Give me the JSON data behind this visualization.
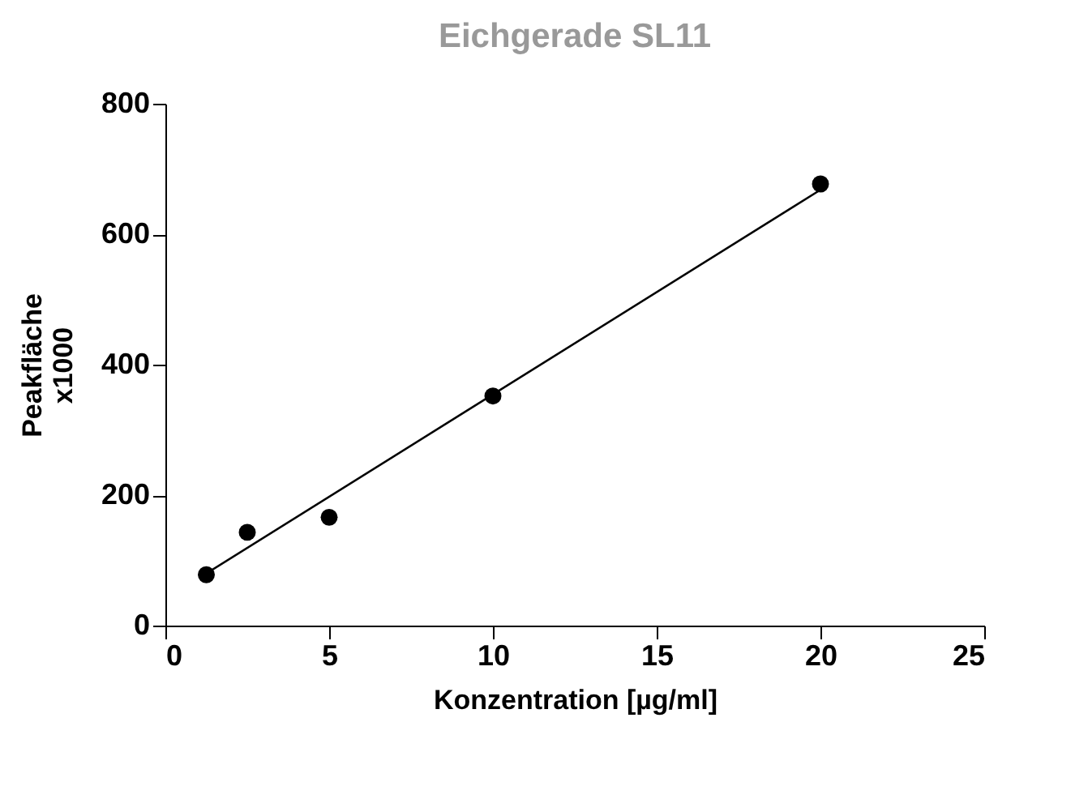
{
  "chart_data": {
    "type": "scatter",
    "title": "Eichgerade SL11",
    "xlabel": "Konzentration [µg/ml]",
    "ylabel": "Peakfläche x1000",
    "xlim": [
      0,
      25
    ],
    "xticks": [
      0,
      5,
      10,
      15,
      20,
      25
    ],
    "ylim": [
      0,
      800
    ],
    "yticks": [
      0,
      200,
      400,
      600,
      800
    ],
    "grid": false,
    "marker": "circle",
    "series": [
      {
        "color": "#000000",
        "x": [
          1.25,
          2.5,
          5,
          10,
          20
        ],
        "values": [
          78,
          143,
          166,
          352,
          677
        ]
      },
      {
        "type": "line",
        "color": "#000000",
        "x": [
          1.25,
          20
        ],
        "values": [
          80,
          668
        ],
        "marker": "none",
        "line_style": "solid"
      }
    ]
  }
}
